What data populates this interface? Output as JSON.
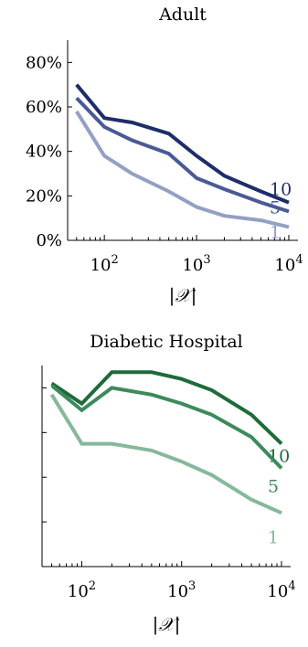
{
  "chart_data": [
    {
      "type": "line",
      "title": "Adult",
      "xlabel": "|𝒳|",
      "ylabel": "",
      "x_scale": "log",
      "xlim": [
        40,
        10000
      ],
      "ylim": [
        0,
        90
      ],
      "xticks": [
        {
          "value": 100,
          "base": "10",
          "exp": "2"
        },
        {
          "value": 1000,
          "base": "10",
          "exp": "3"
        },
        {
          "value": 10000,
          "base": "10",
          "exp": "4"
        }
      ],
      "yticks": [
        {
          "value": 0,
          "label": "0%"
        },
        {
          "value": 20,
          "label": "20%"
        },
        {
          "value": 40,
          "label": "40%"
        },
        {
          "value": 60,
          "label": "60%"
        },
        {
          "value": 80,
          "label": "80%"
        }
      ],
      "grid": false,
      "series": [
        {
          "name": "10",
          "color": "#1e2d6b",
          "x": [
            50,
            100,
            200,
            500,
            1000,
            2000,
            5000,
            10000
          ],
          "y": [
            70,
            55,
            53,
            48,
            38,
            29,
            22,
            17
          ]
        },
        {
          "name": "5",
          "color": "#4a5a96",
          "x": [
            50,
            100,
            200,
            500,
            1000,
            2000,
            5000,
            10000
          ],
          "y": [
            64,
            51,
            45,
            39,
            28,
            23,
            17,
            13
          ]
        },
        {
          "name": "1",
          "color": "#949fc4",
          "x": [
            50,
            100,
            200,
            500,
            1000,
            2000,
            5000,
            10000
          ],
          "y": [
            58,
            38,
            30,
            22,
            15,
            11,
            9,
            6
          ]
        }
      ]
    },
    {
      "type": "line",
      "title": "Diabetic Hospital",
      "xlabel": "|𝒳|",
      "ylabel": "",
      "x_scale": "log",
      "xlim": [
        40,
        10000
      ],
      "ylim": [
        0,
        90
      ],
      "xticks": [
        {
          "value": 100,
          "base": "10",
          "exp": "2"
        },
        {
          "value": 1000,
          "base": "10",
          "exp": "3"
        },
        {
          "value": 10000,
          "base": "10",
          "exp": "4"
        }
      ],
      "yticks": [
        {
          "value": 20,
          "label": ""
        },
        {
          "value": 40,
          "label": ""
        },
        {
          "value": 60,
          "label": ""
        },
        {
          "value": 80,
          "label": ""
        }
      ],
      "grid": false,
      "series": [
        {
          "name": "10",
          "color": "#1e6b3a",
          "x": [
            50,
            100,
            200,
            500,
            1000,
            2000,
            5000,
            10000
          ],
          "y": [
            82,
            73,
            87,
            87,
            84,
            79,
            68,
            55
          ]
        },
        {
          "name": "5",
          "color": "#3d8a5c",
          "x": [
            50,
            100,
            200,
            500,
            1000,
            2000,
            5000,
            10000
          ],
          "y": [
            81,
            70,
            80,
            77,
            73,
            68,
            58,
            44
          ]
        },
        {
          "name": "1",
          "color": "#86b89a",
          "x": [
            50,
            100,
            200,
            500,
            1000,
            2000,
            5000,
            10000
          ],
          "y": [
            77,
            55,
            55,
            52,
            47,
            41,
            30,
            24
          ]
        }
      ]
    }
  ]
}
